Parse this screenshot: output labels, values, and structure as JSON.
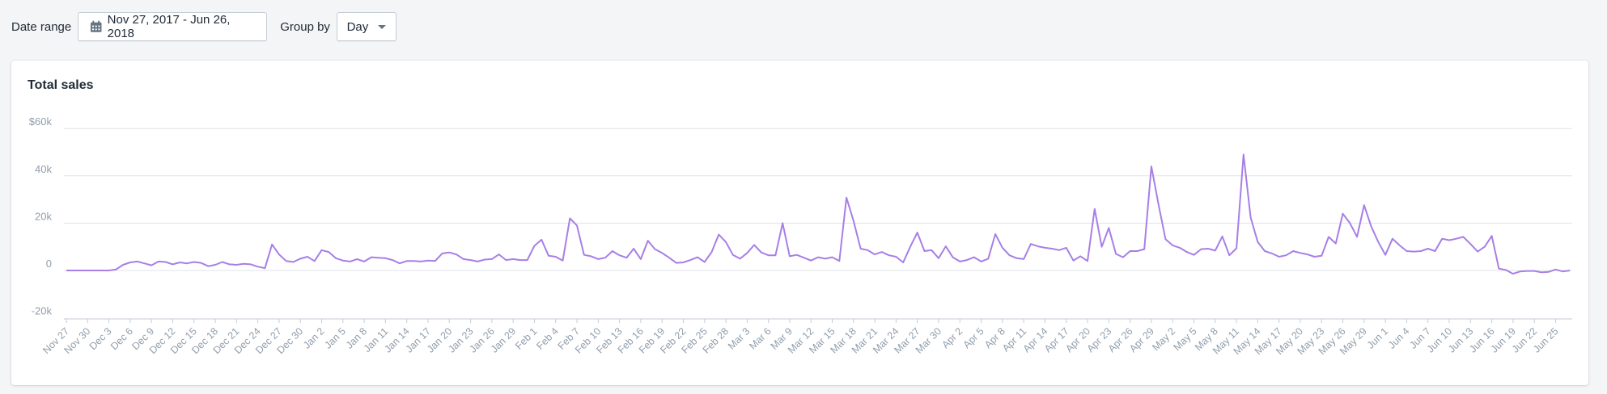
{
  "toolbar": {
    "date_range_label": "Date range",
    "date_range_value": "Nov 27, 2017 - Jun 26, 2018",
    "date_icon": "calendar-icon",
    "group_by_label": "Group by",
    "group_by_value": "Day",
    "group_by_icon": "caret-down-icon"
  },
  "card": {
    "title": "Total sales"
  },
  "colors": {
    "line": "#a77fe6",
    "grid": "#dfe3e8",
    "tick_text": "#919eab",
    "axis": "#c4cdd5"
  },
  "chart_data": {
    "type": "line",
    "title": "Total sales",
    "xlabel": "",
    "ylabel": "",
    "ylim": [
      -20,
      60
    ],
    "yticks": [
      "$60k",
      "40k",
      "20k",
      "0",
      "-20k"
    ],
    "ytick_values": [
      60,
      40,
      20,
      0,
      -20
    ],
    "grid": true,
    "legend": "none",
    "x_start": "Nov 27, 2017",
    "x_end": "Jun 26, 2018",
    "x_tick_labels": [
      "Nov 27",
      "Nov 30",
      "Dec 3",
      "Dec 6",
      "Dec 9",
      "Dec 12",
      "Dec 15",
      "Dec 18",
      "Dec 21",
      "Dec 24",
      "Dec 27",
      "Dec 30",
      "Jan 2",
      "Jan 5",
      "Jan 8",
      "Jan 11",
      "Jan 14",
      "Jan 17",
      "Jan 20",
      "Jan 23",
      "Jan 26",
      "Jan 29",
      "Feb 1",
      "Feb 4",
      "Feb 7",
      "Feb 10",
      "Feb 13",
      "Feb 16",
      "Feb 19",
      "Feb 22",
      "Feb 25",
      "Feb 28",
      "Mar 3",
      "Mar 6",
      "Mar 9",
      "Mar 12",
      "Mar 15",
      "Mar 18",
      "Mar 21",
      "Mar 24",
      "Mar 27",
      "Mar 30",
      "Apr 2",
      "Apr 5",
      "Apr 8",
      "Apr 11",
      "Apr 14",
      "Apr 17",
      "Apr 20",
      "Apr 23",
      "Apr 26",
      "Apr 29",
      "May 2",
      "May 5",
      "May 8",
      "May 11",
      "May 14",
      "May 17",
      "May 20",
      "May 23",
      "May 26",
      "May 29",
      "Jun 1",
      "Jun 4",
      "Jun 7",
      "Jun 10",
      "Jun 13",
      "Jun 16",
      "Jun 19",
      "Jun 22",
      "Jun 25"
    ],
    "series": [
      {
        "name": "Total sales",
        "unit": "k USD",
        "values": [
          0,
          0,
          0,
          0,
          0,
          0,
          0,
          0.4,
          2.4,
          3.4,
          3.8,
          3,
          2.2,
          3.8,
          3.6,
          2.6,
          3.4,
          3,
          3.6,
          3.2,
          1.8,
          2.4,
          3.6,
          2.6,
          2.4,
          2.8,
          2.6,
          1.6,
          1,
          11,
          6.8,
          4,
          3.6,
          5,
          5.8,
          4,
          8.6,
          7.8,
          5.2,
          4.2,
          3.8,
          4.8,
          3.8,
          5.6,
          5.4,
          5.2,
          4.4,
          3,
          4,
          4,
          3.8,
          4.2,
          4,
          7.2,
          7.6,
          6.8,
          4.8,
          4.4,
          3.8,
          4.6,
          4.8,
          6.8,
          4.4,
          4.8,
          4.4,
          4.4,
          10.4,
          13,
          6.2,
          5.8,
          4.2,
          22,
          19,
          6.6,
          6,
          4.8,
          5.4,
          8.2,
          6.4,
          5.4,
          9.2,
          4.8,
          12.6,
          9,
          7.4,
          5.4,
          3.2,
          3.4,
          4.4,
          5.6,
          3.6,
          7.8,
          15.2,
          12,
          6.6,
          5,
          7.4,
          10.8,
          7.6,
          6.4,
          6.4,
          20,
          6,
          6.6,
          5.4,
          4.2,
          5.6,
          5,
          5.6,
          4,
          30.8,
          21,
          9.2,
          8.6,
          6.8,
          7.8,
          6.4,
          5.8,
          3.4,
          10,
          16,
          8.2,
          8.6,
          5.2,
          10.2,
          5.6,
          3.8,
          4.4,
          5.6,
          3.8,
          5,
          15.4,
          9.6,
          6.4,
          5.2,
          4.8,
          11.2,
          10.2,
          9.6,
          9.2,
          8.6,
          9.6,
          4.2,
          6,
          4,
          26,
          10,
          18,
          7,
          5.6,
          8.2,
          8.2,
          9,
          44,
          28,
          13.2,
          10.6,
          9.6,
          7.8,
          6.6,
          9,
          9.2,
          8.4,
          14.4,
          6.4,
          9.4,
          49,
          22.4,
          12,
          8.2,
          7.2,
          5.8,
          6.4,
          8.2,
          7.4,
          6.8,
          5.8,
          6.2,
          14.2,
          11.4,
          24,
          20,
          14.2,
          27.6,
          18.6,
          12,
          6.6,
          13.4,
          10.6,
          8.2,
          8,
          8.2,
          9.2,
          8.2,
          13.4,
          12.8,
          13.4,
          14.2,
          11.2,
          8,
          10,
          14.6,
          0.8,
          0.2,
          -1.4,
          -0.4,
          -0.2,
          -0.2,
          -0.8,
          -0.6,
          0.4,
          -0.4,
          0
        ]
      }
    ]
  }
}
